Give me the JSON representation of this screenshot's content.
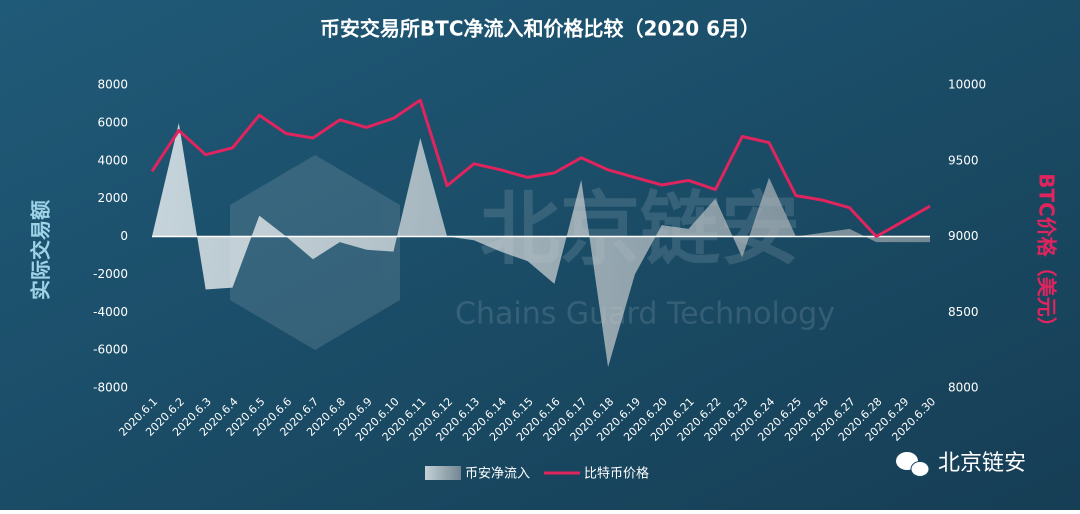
{
  "chart_data": {
    "type": "combo",
    "title": "币安交易所BTC净流入和价格比较（2020 6月）",
    "ylabel": "实际交易额",
    "y2label": "BTC价格（美元）",
    "categories": [
      "2020.6.1",
      "2020.6.2",
      "2020.6.3",
      "2020.6.4",
      "2020.6.5",
      "2020.6.6",
      "2020.6.7",
      "2020.6.8",
      "2020.6.9",
      "2020.6.10",
      "2020.6.11",
      "2020.6.12",
      "2020.6.13",
      "2020.6.14",
      "2020.6.15",
      "2020.6.16",
      "2020.6.17",
      "2020.6.18",
      "2020.6.19",
      "2020.6.20",
      "2020.6.21",
      "2020.6.22",
      "2020.6.23",
      "2020.6.24",
      "2020.6.25",
      "2020.6.26",
      "2020.6.27",
      "2020.6.28",
      "2020.6.29",
      "2020.6.30"
    ],
    "series": [
      {
        "name": "币安净流入",
        "type": "area",
        "color": "#d8dde0",
        "values": [
          0,
          6000,
          -2800,
          -2700,
          1100,
          0,
          -1200,
          -300,
          -700,
          -800,
          5200,
          0,
          -200,
          -800,
          -1300,
          -2500,
          3000,
          -6900,
          -2000,
          600,
          400,
          2000,
          -1100,
          3100,
          0,
          200,
          400,
          -300,
          -300,
          -300
        ]
      },
      {
        "name": "比特币价格",
        "type": "line",
        "axis": "y2",
        "color": "#e0245e",
        "values": [
          9430,
          9700,
          9540,
          9585,
          9800,
          9680,
          9650,
          9770,
          9720,
          9780,
          9900,
          9335,
          9480,
          9440,
          9390,
          9420,
          9520,
          9440,
          9390,
          9340,
          9370,
          9310,
          9660,
          9620,
          9270,
          9240,
          9190,
          9000,
          9100,
          9200
        ]
      }
    ],
    "ylim": [
      -8000,
      8000
    ],
    "yticks": [
      -8000,
      -6000,
      -4000,
      -2000,
      0,
      2000,
      4000,
      6000,
      8000
    ],
    "y2lim": [
      8000,
      10000
    ],
    "y2ticks": [
      8000,
      8500,
      9000,
      9500,
      10000
    ],
    "legend": "bottom"
  },
  "watermark": {
    "name": "北京链安",
    "subtitle": "Chains Guard Technology"
  },
  "brand": "北京链安"
}
